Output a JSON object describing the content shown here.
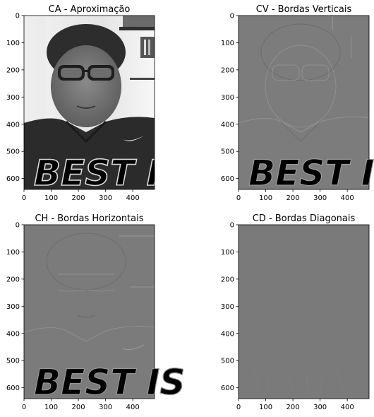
{
  "figure": {
    "background": "#ffffff"
  },
  "chart_data": [
    {
      "type": "heatmap",
      "title": "CA - Aproximação",
      "content": "grayscale image",
      "x_ticks": [
        0,
        100,
        200,
        300,
        400
      ],
      "y_ticks": [
        0,
        100,
        200,
        300,
        400,
        500,
        600
      ],
      "xlim": [
        0,
        480
      ],
      "ylim": [
        640,
        0
      ],
      "base_gray": "#3a3a3a",
      "image_text": "BEST IS"
    },
    {
      "type": "heatmap",
      "title": "CV - Bordas Verticais",
      "content": "grayscale image",
      "x_ticks": [
        0,
        100,
        200,
        300,
        400
      ],
      "y_ticks": [
        0,
        100,
        200,
        300,
        400,
        500,
        600
      ],
      "xlim": [
        0,
        480
      ],
      "ylim": [
        640,
        0
      ],
      "base_gray": "#7c7c7c",
      "image_text": "BEST IS"
    },
    {
      "type": "heatmap",
      "title": "CH - Bordas Horizontais",
      "content": "grayscale image",
      "x_ticks": [
        0,
        100,
        200,
        300,
        400
      ],
      "y_ticks": [
        0,
        100,
        200,
        300,
        400,
        500,
        600
      ],
      "xlim": [
        0,
        480
      ],
      "ylim": [
        640,
        0
      ],
      "base_gray": "#7b7b7b",
      "image_text": "BEST IS"
    },
    {
      "type": "heatmap",
      "title": "CD - Bordas Diagonais",
      "content": "grayscale image",
      "x_ticks": [
        0,
        100,
        200,
        300,
        400
      ],
      "y_ticks": [
        0,
        100,
        200,
        300,
        400,
        500,
        600
      ],
      "xlim": [
        0,
        480
      ],
      "ylim": [
        640,
        0
      ],
      "base_gray": "#7a7a7a",
      "image_text": ""
    }
  ]
}
